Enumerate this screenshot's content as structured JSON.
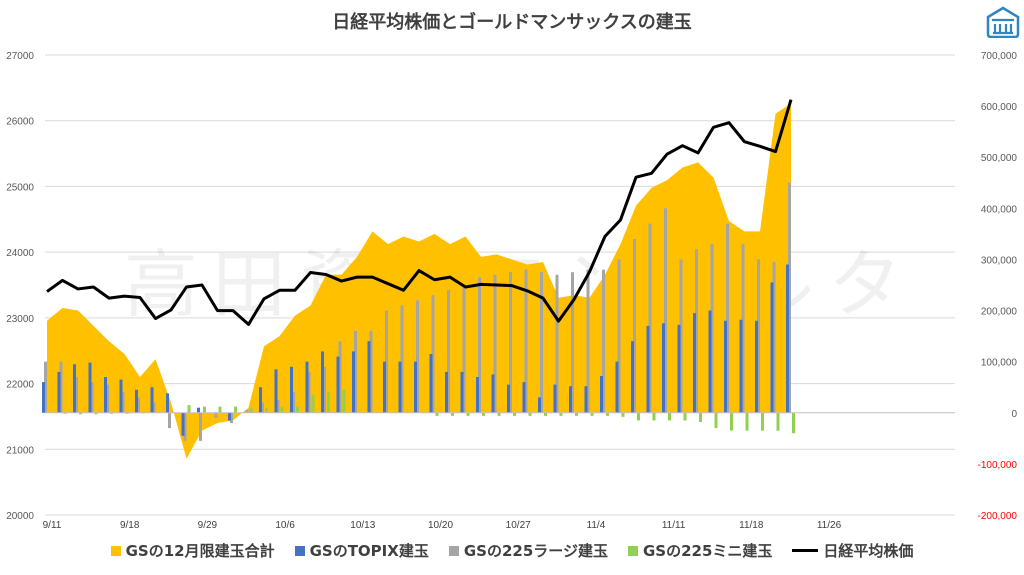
{
  "chart_data": {
    "type": "bar",
    "title": "日経平均株価とゴールドマンサックスの建玉",
    "watermark": "高田資産コンサルタ",
    "x_tick_labels": [
      "9/11",
      "9/18",
      "9/29",
      "10/6",
      "10/13",
      "10/20",
      "10/27",
      "11/4",
      "11/11",
      "11/18",
      "11/26"
    ],
    "left_axis": {
      "ylim": [
        20000,
        27000
      ],
      "ticks": [
        20000,
        21000,
        22000,
        23000,
        24000,
        25000,
        26000,
        27000
      ]
    },
    "right_axis": {
      "ylim": [
        -200000,
        700000
      ],
      "ticks": [
        {
          "v": -200000,
          "label": "-200,000"
        },
        {
          "v": -100000,
          "label": "-100,000"
        },
        {
          "v": 0,
          "label": "0"
        },
        {
          "v": 100000,
          "label": "100,000"
        },
        {
          "v": 200000,
          "label": "200,000"
        },
        {
          "v": 300000,
          "label": "300,000"
        },
        {
          "v": 400000,
          "label": "400,000"
        },
        {
          "v": 500000,
          "label": "500,000"
        },
        {
          "v": 600000,
          "label": "600,000"
        },
        {
          "v": 700000,
          "label": "700,000"
        }
      ]
    },
    "colors": {
      "total": "#FFC000",
      "topix": "#4472C4",
      "large225": "#A5A5A5",
      "mini225": "#92D050",
      "nikkei": "#000000",
      "negative_axis": "#FF0000"
    },
    "legend": [
      "GSの12月限建玉合計",
      "GSのTOPIX建玉",
      "GSの225ラージ建玉",
      "GSの225ミニ建玉",
      "日経平均株価"
    ],
    "series": [
      {
        "name": "GSの12月限建玉合計",
        "axis": "right",
        "kind": "area",
        "values": [
          180000,
          205000,
          200000,
          170000,
          140000,
          115000,
          70000,
          105000,
          20000,
          -90000,
          -35000,
          -20000,
          -15000,
          10000,
          130000,
          150000,
          190000,
          210000,
          270000,
          270000,
          305000,
          355000,
          330000,
          345000,
          335000,
          350000,
          330000,
          345000,
          305000,
          310000,
          300000,
          290000,
          295000,
          225000,
          230000,
          225000,
          270000,
          330000,
          405000,
          440000,
          455000,
          480000,
          490000,
          460000,
          375000,
          355000,
          355000,
          585000,
          605000
        ]
      },
      {
        "name": "GSのTOPIX建玉",
        "axis": "right",
        "kind": "bar",
        "values": [
          60000,
          80000,
          95000,
          98000,
          70000,
          65000,
          45000,
          50000,
          38000,
          -45000,
          10000,
          0,
          -15000,
          0,
          50000,
          85000,
          90000,
          100000,
          120000,
          110000,
          120000,
          140000,
          100000,
          100000,
          100000,
          115000,
          80000,
          80000,
          70000,
          75000,
          55000,
          60000,
          30000,
          55000,
          52000,
          52000,
          72000,
          100000,
          140000,
          170000,
          175000,
          172000,
          195000,
          200000,
          180000,
          182000,
          180000,
          255000,
          290000
        ]
      },
      {
        "name": "GSの225ラージ建玉",
        "axis": "right",
        "kind": "bar",
        "values": [
          100000,
          100000,
          70000,
          60000,
          55000,
          40000,
          30000,
          20000,
          -30000,
          -55000,
          -55000,
          -10000,
          -20000,
          5000,
          20000,
          25000,
          40000,
          80000,
          90000,
          140000,
          160000,
          160000,
          200000,
          210000,
          220000,
          230000,
          240000,
          250000,
          265000,
          270000,
          275000,
          280000,
          275000,
          270000,
          275000,
          280000,
          280000,
          300000,
          340000,
          370000,
          400000,
          300000,
          320000,
          330000,
          370000,
          330000,
          300000,
          295000,
          450000
        ]
      },
      {
        "name": "GSの225ミニ建玉",
        "axis": "right",
        "kind": "bar",
        "values": [
          0,
          -2000,
          -3000,
          -3000,
          -2000,
          -2000,
          -1000,
          0,
          0,
          15000,
          12000,
          12000,
          12000,
          10000,
          10000,
          12000,
          12000,
          35000,
          40000,
          45000,
          0,
          0,
          0,
          0,
          0,
          -6000,
          -6000,
          -6000,
          -6000,
          -6000,
          -6000,
          -6000,
          -6000,
          -6000,
          -6000,
          -6000,
          -6000,
          -8000,
          -15000,
          -15000,
          -15000,
          -15000,
          -18000,
          -30000,
          -35000,
          -35000,
          -35000,
          -35000,
          -40000
        ]
      },
      {
        "name": "日経平均株価",
        "axis": "left",
        "kind": "line",
        "values": [
          23400,
          23570,
          23440,
          23470,
          23300,
          23330,
          23310,
          22990,
          23120,
          23470,
          23500,
          23110,
          23110,
          22900,
          23290,
          23420,
          23420,
          23690,
          23660,
          23560,
          23620,
          23620,
          23520,
          23420,
          23720,
          23580,
          23620,
          23470,
          23510,
          23500,
          23490,
          23410,
          23300,
          22950,
          23280,
          23700,
          24240,
          24490,
          25140,
          25200,
          25490,
          25620,
          25510,
          25900,
          25970,
          25680,
          25610,
          25530,
          26320
        ]
      }
    ]
  }
}
